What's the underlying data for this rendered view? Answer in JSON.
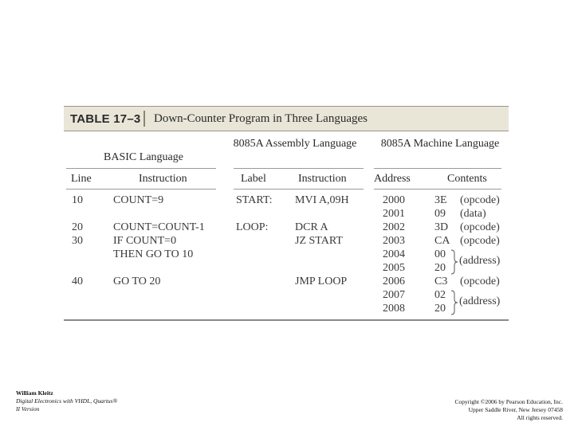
{
  "table": {
    "number": "TABLE 17–3",
    "title": "Down-Counter Program in Three Languages",
    "groups": {
      "basic": "BASIC Language",
      "assembly": "8085A Assembly Language",
      "machine": "8085A Machine Language"
    },
    "columns": [
      "Line",
      "Instruction",
      "Label",
      "Instruction",
      "Address",
      "Contents"
    ],
    "basic_rows": [
      {
        "line": "10",
        "instruction": "COUNT=9"
      },
      {
        "line": "20",
        "instruction": "COUNT=COUNT-1"
      },
      {
        "line": "30",
        "instruction": "IF COUNT=0"
      },
      {
        "line": "",
        "instruction": "THEN GO TO 10"
      },
      {
        "line": "40",
        "instruction": "GO TO 20"
      }
    ],
    "assembly_rows": [
      {
        "label": "START:",
        "instruction": "MVI A,09H"
      },
      {
        "label": "LOOP:",
        "instruction": "DCR A"
      },
      {
        "label": "",
        "instruction": "JZ START"
      },
      {
        "label": "",
        "instruction": "JMP LOOP"
      }
    ],
    "machine_rows": [
      {
        "address": "2000",
        "contents": "3E",
        "note": "(opcode)"
      },
      {
        "address": "2001",
        "contents": "09",
        "note": "(data)"
      },
      {
        "address": "2002",
        "contents": "3D",
        "note": "(opcode)"
      },
      {
        "address": "2003",
        "contents": "CA",
        "note": "(opcode)"
      },
      {
        "address": "2004",
        "contents": "00",
        "note": ""
      },
      {
        "address": "2005",
        "contents": "20",
        "note": ""
      },
      {
        "address": "2006",
        "contents": "C3",
        "note": "(opcode)"
      },
      {
        "address": "2007",
        "contents": "02",
        "note": ""
      },
      {
        "address": "2008",
        "contents": "20",
        "note": ""
      }
    ],
    "brace_notes": [
      "(address)",
      "(address)"
    ]
  },
  "footer": {
    "author": "William Kleitz",
    "book_line1": "Digital Electronics with VHDL, Quartus®",
    "book_line2": "II Version",
    "copyright_line1": "Copyright ©2006 by Pearson Education, Inc.",
    "copyright_line2": "Upper Saddle River, New Jersey 07458",
    "copyright_line3": "All rights reserved."
  }
}
